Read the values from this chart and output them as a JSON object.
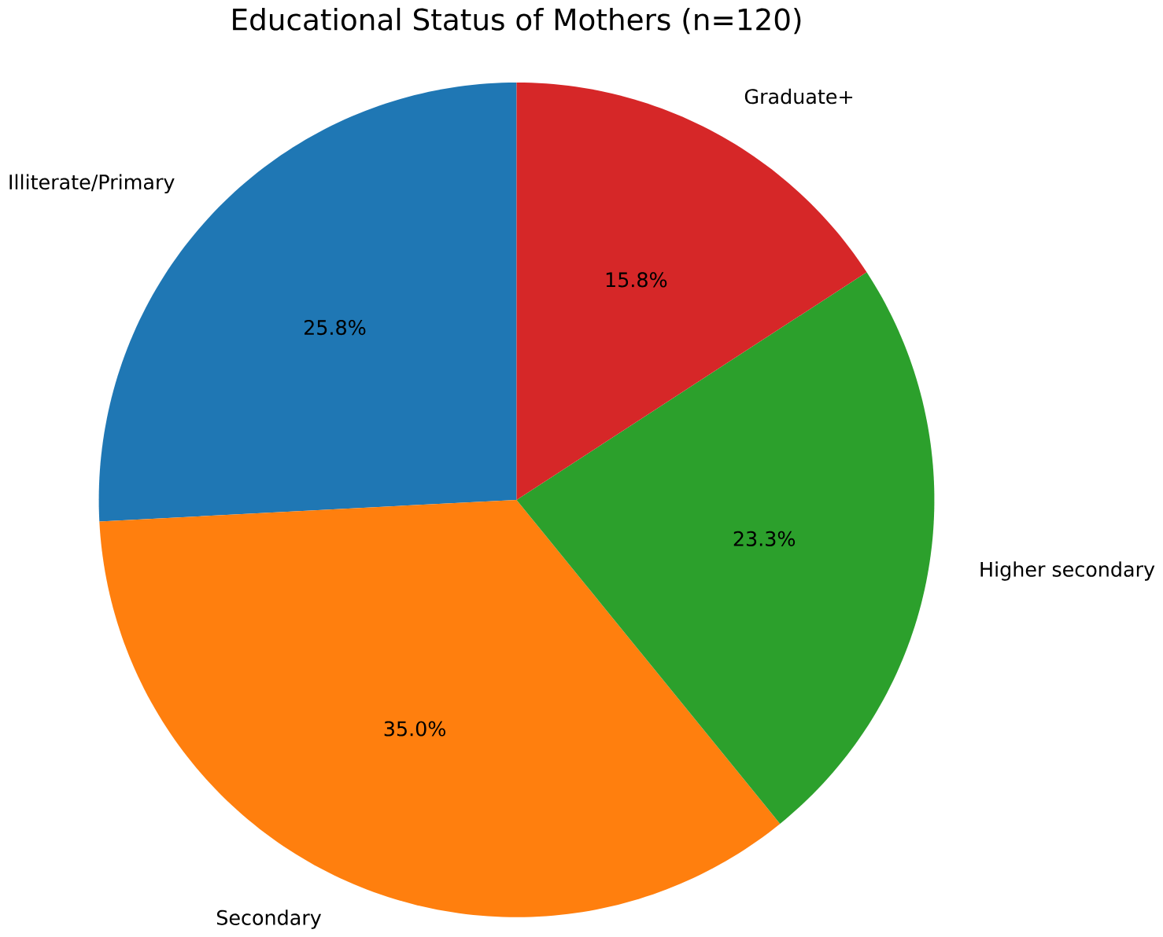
{
  "chart_data": {
    "type": "pie",
    "title": "Educational Status of Mothers (n=120)",
    "categories": [
      "Illiterate/Primary",
      "Secondary",
      "Higher secondary",
      "Graduate+"
    ],
    "values": [
      25.8,
      35.0,
      23.3,
      15.8
    ],
    "value_labels": [
      "25.8%",
      "35.0%",
      "23.3%",
      "15.8%"
    ],
    "colors": [
      "#1f77b4",
      "#ff7f0e",
      "#2ca02c",
      "#d62728"
    ]
  }
}
